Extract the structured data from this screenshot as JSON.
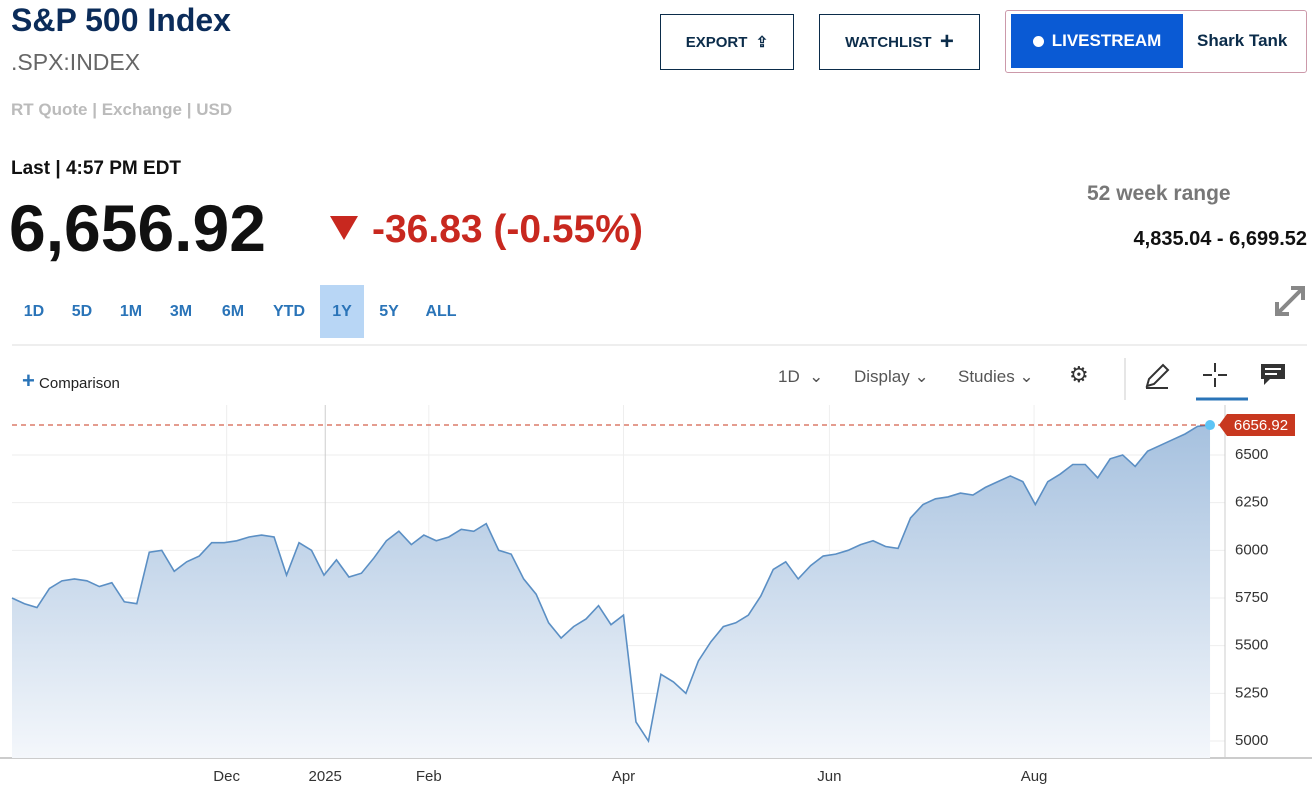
{
  "header": {
    "title": "S&P 500 Index",
    "symbol": ".SPX:INDEX",
    "quote_info": "RT Quote | Exchange | USD",
    "last_label": "Last | 4:57 PM EDT",
    "price": "6,656.92",
    "change": "-36.83 (-0.55%)",
    "range_label": "52 week range",
    "range_value": "4,835.04 - 6,699.52"
  },
  "buttons": {
    "export": "EXPORT",
    "watchlist": "WATCHLIST",
    "livestream": "LIVESTREAM",
    "show": "Shark Tank"
  },
  "ranges": [
    "1D",
    "5D",
    "1M",
    "3M",
    "6M",
    "YTD",
    "1Y",
    "5Y",
    "ALL"
  ],
  "toolbar": {
    "comparison": "Comparison",
    "interval": "1D",
    "display": "Display",
    "studies": "Studies"
  },
  "chart_data": {
    "type": "area",
    "color": "#5b8fc4",
    "last_value": 6656.92,
    "ref_color": "#c8381f",
    "values": [
      5750,
      5720,
      5700,
      5800,
      5840,
      5850,
      5840,
      5810,
      5830,
      5730,
      5720,
      5990,
      6000,
      5890,
      5940,
      5970,
      6040,
      6040,
      6050,
      6070,
      6080,
      6070,
      5870,
      6040,
      6000,
      5870,
      5950,
      5860,
      5880,
      5960,
      6050,
      6100,
      6030,
      6080,
      6050,
      6070,
      6110,
      6100,
      6140,
      6000,
      5980,
      5850,
      5770,
      5620,
      5540,
      5600,
      5640,
      5710,
      5610,
      5660,
      5100,
      5000,
      5350,
      5310,
      5250,
      5420,
      5520,
      5600,
      5620,
      5660,
      5760,
      5900,
      5940,
      5850,
      5920,
      5970,
      5980,
      6000,
      6030,
      6050,
      6020,
      6010,
      6170,
      6240,
      6270,
      6280,
      6300,
      6290,
      6330,
      6360,
      6390,
      6360,
      6240,
      6360,
      6400,
      6450,
      6450,
      6380,
      6480,
      6500,
      6440,
      6520,
      6550,
      6580,
      6610,
      6650,
      6656.92
    ],
    "xlim": [
      0,
      97.2
    ],
    "xticks": [
      {
        "value": 17.2,
        "label": "Dec"
      },
      {
        "value": 25.1,
        "label": "2025"
      },
      {
        "value": 33.4,
        "label": "Feb"
      },
      {
        "value": 49.0,
        "label": "Apr"
      },
      {
        "value": 65.5,
        "label": "Jun"
      },
      {
        "value": 81.9,
        "label": "Aug"
      }
    ],
    "ylim": [
      4911,
      6762
    ],
    "yticks": [
      5000,
      5250,
      5500,
      5750,
      6000,
      6250,
      6500
    ],
    "grid": true
  }
}
